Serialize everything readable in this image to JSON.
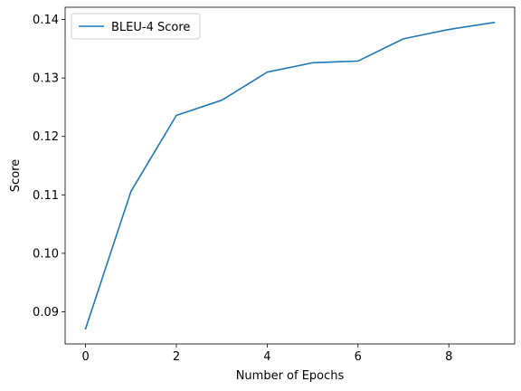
{
  "chart_data": {
    "type": "line",
    "title": "",
    "xlabel": "Number of Epochs",
    "ylabel": "Score",
    "x": [
      0,
      1,
      2,
      3,
      4,
      5,
      6,
      7,
      8,
      9
    ],
    "series": [
      {
        "name": "BLEU-4 Score",
        "color": "#1f77b4",
        "values": [
          0.0871,
          0.1106,
          0.1236,
          0.1262,
          0.131,
          0.1326,
          0.1329,
          0.1367,
          0.1383,
          0.1395
        ]
      }
    ],
    "xlim": [
      -0.45,
      9.45
    ],
    "ylim": [
      0.0845,
      0.1421
    ],
    "xticks": [
      0,
      2,
      4,
      6,
      8
    ],
    "xtick_labels": [
      "0",
      "2",
      "4",
      "6",
      "8"
    ],
    "yticks": [
      0.09,
      0.1,
      0.11,
      0.12,
      0.13,
      0.14
    ],
    "ytick_labels": [
      "0.09",
      "0.10",
      "0.11",
      "0.12",
      "0.13",
      "0.14"
    ],
    "grid": false,
    "legend_position": "upper-left"
  }
}
